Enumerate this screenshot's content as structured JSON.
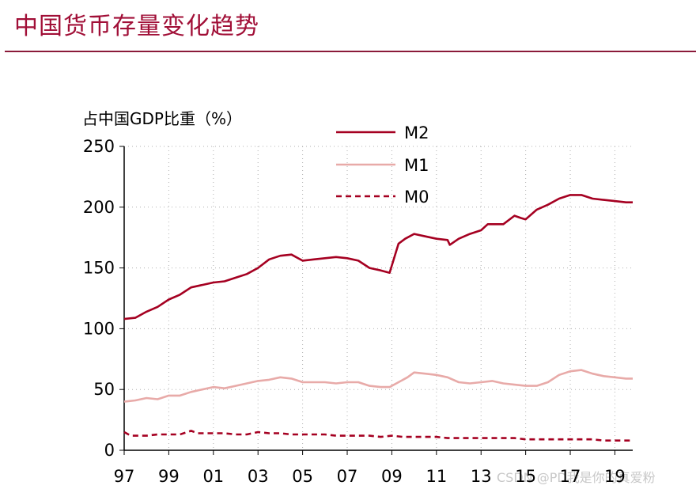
{
  "header": {
    "title": "中国货币存量变化趋势"
  },
  "watermark": "CSDN @PD我是你的真爱粉",
  "chart_data": {
    "type": "line",
    "ylabel": "占中国GDP比重（%）",
    "xlabel": "",
    "ylim": [
      0,
      250
    ],
    "xlim": [
      1997,
      2019.8
    ],
    "yticks": [
      0,
      50,
      100,
      150,
      200,
      250
    ],
    "xtick_labels": [
      "97",
      "99",
      "01",
      "03",
      "05",
      "07",
      "09",
      "11",
      "13",
      "15",
      "17",
      "19"
    ],
    "xtick_years": [
      1997,
      1999,
      2001,
      2003,
      2005,
      2007,
      2009,
      2011,
      2013,
      2015,
      2017,
      2019
    ],
    "grid": true,
    "legend_position": "top-center",
    "series": [
      {
        "name": "M2",
        "color": "#a50021",
        "style": "solid",
        "points": [
          [
            1997,
            108
          ],
          [
            1997.5,
            109
          ],
          [
            1998,
            114
          ],
          [
            1998.5,
            118
          ],
          [
            1999,
            124
          ],
          [
            1999.5,
            128
          ],
          [
            2000,
            134
          ],
          [
            2000.5,
            136
          ],
          [
            2001,
            138
          ],
          [
            2001.5,
            139
          ],
          [
            2002,
            142
          ],
          [
            2002.5,
            145
          ],
          [
            2003,
            150
          ],
          [
            2003.5,
            157
          ],
          [
            2004,
            160
          ],
          [
            2004.5,
            161
          ],
          [
            2005,
            156
          ],
          [
            2005.5,
            157
          ],
          [
            2006,
            158
          ],
          [
            2006.5,
            159
          ],
          [
            2007,
            158
          ],
          [
            2007.5,
            156
          ],
          [
            2008,
            150
          ],
          [
            2008.5,
            148
          ],
          [
            2008.9,
            146
          ],
          [
            2009.3,
            170
          ],
          [
            2009.6,
            174
          ],
          [
            2010,
            178
          ],
          [
            2010.5,
            176
          ],
          [
            2011,
            174
          ],
          [
            2011.5,
            173
          ],
          [
            2011.6,
            169
          ],
          [
            2012,
            174
          ],
          [
            2012.5,
            178
          ],
          [
            2013,
            181
          ],
          [
            2013.3,
            186
          ],
          [
            2013.8,
            186
          ],
          [
            2014,
            186
          ],
          [
            2014.5,
            193
          ],
          [
            2014.8,
            191
          ],
          [
            2015,
            190
          ],
          [
            2015.5,
            198
          ],
          [
            2016,
            202
          ],
          [
            2016.5,
            207
          ],
          [
            2017,
            210
          ],
          [
            2017.5,
            210
          ],
          [
            2018,
            207
          ],
          [
            2018.5,
            206
          ],
          [
            2019,
            205
          ],
          [
            2019.5,
            204
          ],
          [
            2019.8,
            204
          ]
        ]
      },
      {
        "name": "M1",
        "color": "#e8aaa8",
        "style": "solid",
        "points": [
          [
            1997,
            40
          ],
          [
            1997.5,
            41
          ],
          [
            1998,
            43
          ],
          [
            1998.5,
            42
          ],
          [
            1999,
            45
          ],
          [
            1999.5,
            45
          ],
          [
            2000,
            48
          ],
          [
            2000.5,
            50
          ],
          [
            2001,
            52
          ],
          [
            2001.5,
            51
          ],
          [
            2002,
            53
          ],
          [
            2002.5,
            55
          ],
          [
            2003,
            57
          ],
          [
            2003.5,
            58
          ],
          [
            2004,
            60
          ],
          [
            2004.5,
            59
          ],
          [
            2005,
            56
          ],
          [
            2005.5,
            56
          ],
          [
            2006,
            56
          ],
          [
            2006.5,
            55
          ],
          [
            2007,
            56
          ],
          [
            2007.5,
            56
          ],
          [
            2008,
            53
          ],
          [
            2008.5,
            52
          ],
          [
            2008.9,
            52
          ],
          [
            2009.3,
            56
          ],
          [
            2009.7,
            60
          ],
          [
            2010,
            64
          ],
          [
            2010.5,
            63
          ],
          [
            2011,
            62
          ],
          [
            2011.5,
            60
          ],
          [
            2012,
            56
          ],
          [
            2012.5,
            55
          ],
          [
            2013,
            56
          ],
          [
            2013.5,
            57
          ],
          [
            2014,
            55
          ],
          [
            2014.5,
            54
          ],
          [
            2015,
            53
          ],
          [
            2015.5,
            53
          ],
          [
            2016,
            56
          ],
          [
            2016.5,
            62
          ],
          [
            2017,
            65
          ],
          [
            2017.5,
            66
          ],
          [
            2018,
            63
          ],
          [
            2018.5,
            61
          ],
          [
            2019,
            60
          ],
          [
            2019.5,
            59
          ],
          [
            2019.8,
            59
          ]
        ]
      },
      {
        "name": "M0",
        "color": "#a50021",
        "style": "dashed",
        "points": [
          [
            1997,
            15
          ],
          [
            1997.3,
            12
          ],
          [
            1998,
            12
          ],
          [
            1998.5,
            13
          ],
          [
            1999,
            13
          ],
          [
            1999.5,
            13
          ],
          [
            2000,
            16
          ],
          [
            2000.3,
            14
          ],
          [
            2001,
            14
          ],
          [
            2001.5,
            14
          ],
          [
            2002,
            13
          ],
          [
            2002.5,
            13
          ],
          [
            2003,
            15
          ],
          [
            2003.5,
            14
          ],
          [
            2004,
            14
          ],
          [
            2004.5,
            13
          ],
          [
            2005,
            13
          ],
          [
            2005.5,
            13
          ],
          [
            2006,
            13
          ],
          [
            2006.5,
            12
          ],
          [
            2007,
            12
          ],
          [
            2007.5,
            12
          ],
          [
            2008,
            12
          ],
          [
            2008.5,
            11
          ],
          [
            2009,
            12
          ],
          [
            2009.5,
            11
          ],
          [
            2010,
            11
          ],
          [
            2010.5,
            11
          ],
          [
            2011,
            11
          ],
          [
            2011.5,
            10
          ],
          [
            2012,
            10
          ],
          [
            2012.5,
            10
          ],
          [
            2013,
            10
          ],
          [
            2013.5,
            10
          ],
          [
            2014,
            10
          ],
          [
            2014.5,
            10
          ],
          [
            2015,
            9
          ],
          [
            2015.5,
            9
          ],
          [
            2016,
            9
          ],
          [
            2016.5,
            9
          ],
          [
            2017,
            9
          ],
          [
            2017.5,
            9
          ],
          [
            2018,
            9
          ],
          [
            2018.5,
            8
          ],
          [
            2019,
            8
          ],
          [
            2019.5,
            8
          ],
          [
            2019.8,
            8
          ]
        ]
      }
    ]
  }
}
